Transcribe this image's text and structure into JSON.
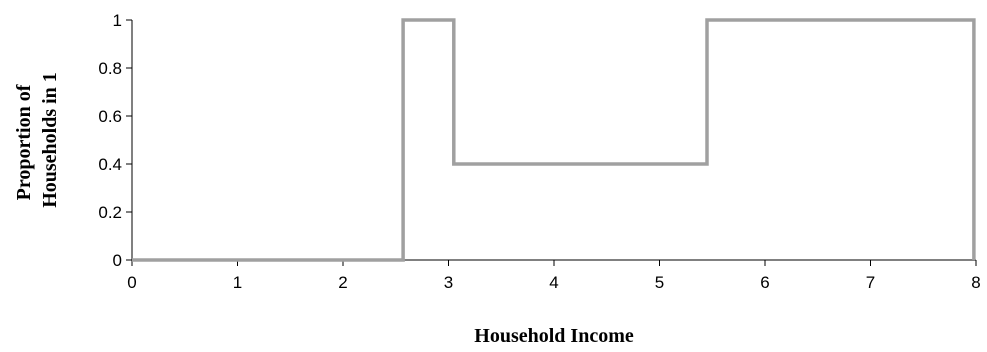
{
  "chart_data": {
    "type": "line",
    "step": true,
    "xlabel": "Household Income",
    "ylabel_lines": [
      "Proportion of",
      "Households in 1"
    ],
    "xlim": [
      0,
      8
    ],
    "ylim": [
      0,
      1
    ],
    "x_ticks": [
      0,
      1,
      2,
      3,
      4,
      5,
      6,
      7,
      8
    ],
    "y_ticks": [
      0,
      0.2,
      0.4,
      0.6,
      0.8,
      1
    ],
    "grid": false,
    "legend": "none",
    "series": [
      {
        "color": "#a0a0a0",
        "points": [
          {
            "x": 0,
            "y": 0
          },
          {
            "x": 2.57,
            "y": 0
          },
          {
            "x": 2.57,
            "y": 1
          },
          {
            "x": 3.05,
            "y": 1
          },
          {
            "x": 3.05,
            "y": 0.4
          },
          {
            "x": 5.45,
            "y": 0.4
          },
          {
            "x": 5.45,
            "y": 1
          },
          {
            "x": 7.98,
            "y": 1
          },
          {
            "x": 7.98,
            "y": 0
          }
        ]
      }
    ]
  }
}
